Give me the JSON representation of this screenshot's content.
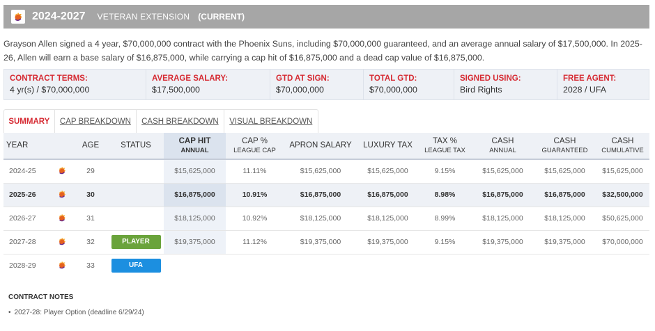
{
  "header": {
    "years": "2024-2027",
    "type": "VETERAN EXTENSION",
    "status": "(CURRENT)",
    "logo_icon": "suns-sun-icon"
  },
  "summary": {
    "text": "Grayson Allen signed a 4 year, $70,000,000 contract with the Phoenix Suns, including $70,000,000 guaranteed, and an average annual salary of $17,500,000. In 2025-26, Allen will earn a base salary of $16,875,000, while carrying a cap hit of $16,875,000 and a dead cap value of $16,875,000."
  },
  "terms": [
    {
      "label": "CONTRACT TERMS:",
      "value": "4 yr(s) / $70,000,000"
    },
    {
      "label": "AVERAGE SALARY:",
      "value": "$17,500,000"
    },
    {
      "label": "GTD AT SIGN:",
      "value": "$70,000,000"
    },
    {
      "label": "TOTAL GTD:",
      "value": "$70,000,000"
    },
    {
      "label": "SIGNED USING:",
      "value": "Bird Rights"
    },
    {
      "label": "FREE AGENT:",
      "value": "2028 / UFA"
    }
  ],
  "tabs": [
    {
      "label": "SUMMARY",
      "active": true
    },
    {
      "label": "CAP BREAKDOWN",
      "active": false
    },
    {
      "label": "CASH BREAKDOWN",
      "active": false
    },
    {
      "label": "VISUAL BREAKDOWN",
      "active": false
    }
  ],
  "table": {
    "headers": [
      {
        "main": "YEAR",
        "sub": ""
      },
      {
        "main": "",
        "sub": ""
      },
      {
        "main": "AGE",
        "sub": ""
      },
      {
        "main": "STATUS",
        "sub": ""
      },
      {
        "main": "CAP HIT",
        "sub": "ANNUAL"
      },
      {
        "main": "CAP %",
        "sub": "LEAGUE CAP"
      },
      {
        "main": "APRON SALARY",
        "sub": ""
      },
      {
        "main": "LUXURY TAX",
        "sub": ""
      },
      {
        "main": "TAX %",
        "sub": "LEAGUE TAX"
      },
      {
        "main": "CASH",
        "sub": "ANNUAL"
      },
      {
        "main": "CASH",
        "sub": "GUARANTEED"
      },
      {
        "main": "CASH",
        "sub": "CUMULATIVE"
      }
    ],
    "rows": [
      {
        "year": "2024-25",
        "age": "29",
        "status": "",
        "cap_hit": "$15,625,000",
        "cap_pct": "11.11%",
        "apron": "$15,625,000",
        "lux_tax": "$15,625,000",
        "tax_pct": "9.15%",
        "cash_annual": "$15,625,000",
        "cash_gtd": "$15,625,000",
        "cash_cum": "$15,625,000",
        "current": false
      },
      {
        "year": "2025-26",
        "age": "30",
        "status": "",
        "cap_hit": "$16,875,000",
        "cap_pct": "10.91%",
        "apron": "$16,875,000",
        "lux_tax": "$16,875,000",
        "tax_pct": "8.98%",
        "cash_annual": "$16,875,000",
        "cash_gtd": "$16,875,000",
        "cash_cum": "$32,500,000",
        "current": true
      },
      {
        "year": "2026-27",
        "age": "31",
        "status": "",
        "cap_hit": "$18,125,000",
        "cap_pct": "10.92%",
        "apron": "$18,125,000",
        "lux_tax": "$18,125,000",
        "tax_pct": "8.99%",
        "cash_annual": "$18,125,000",
        "cash_gtd": "$18,125,000",
        "cash_cum": "$50,625,000",
        "current": false
      },
      {
        "year": "2027-28",
        "age": "32",
        "status": "PLAYER",
        "status_color": "#6aa33b",
        "cap_hit": "$19,375,000",
        "cap_pct": "11.12%",
        "apron": "$19,375,000",
        "lux_tax": "$19,375,000",
        "tax_pct": "9.15%",
        "cash_annual": "$19,375,000",
        "cash_gtd": "$19,375,000",
        "cash_cum": "$70,000,000",
        "current": false
      },
      {
        "year": "2028-29",
        "age": "33",
        "status": "UFA",
        "status_color": "#1c8fe0",
        "empty": true
      }
    ]
  },
  "notes": {
    "title": "CONTRACT NOTES",
    "items": [
      "2027-28: Player Option (deadline 6/29/24)"
    ]
  },
  "colors": {
    "accent_red": "#d62b33",
    "header_bg": "#a6a6a6",
    "player_option": "#6aa33b",
    "ufa": "#1c8fe0"
  }
}
